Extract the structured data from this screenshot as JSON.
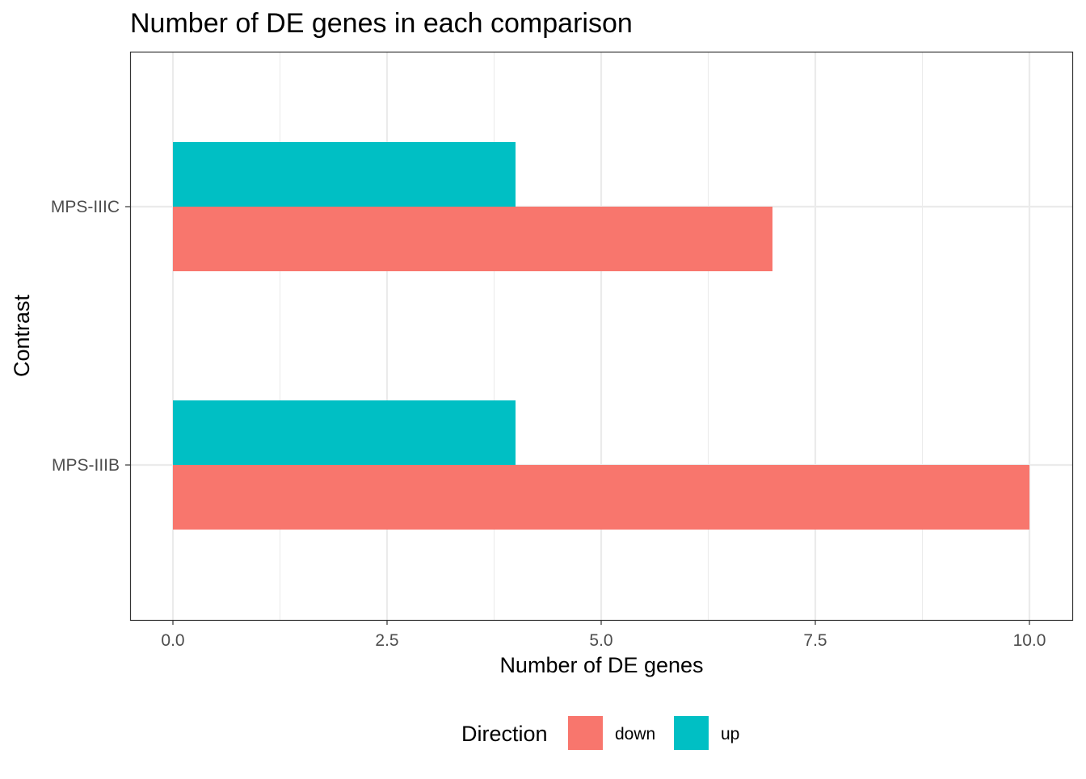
{
  "chart_data": {
    "type": "bar",
    "orientation": "horizontal",
    "title": "Number of DE genes in each comparison",
    "xlabel": "Number of DE genes",
    "ylabel": "Contrast",
    "categories": [
      "MPS-IIIB",
      "MPS-IIIC"
    ],
    "series": [
      {
        "name": "down",
        "values": [
          10,
          7
        ],
        "color": "#F8766D"
      },
      {
        "name": "up",
        "values": [
          4,
          4
        ],
        "color": "#00BFC4"
      }
    ],
    "xlim": [
      -0.5,
      10.5
    ],
    "x_ticks": [
      0,
      2.5,
      5,
      7.5,
      10
    ],
    "x_tick_labels": [
      "0.0",
      "2.5",
      "5.0",
      "7.5",
      "10.0"
    ],
    "x_minor_ticks": [
      1.25,
      3.75,
      6.25,
      8.75
    ],
    "grid": true,
    "legend": {
      "title": "Direction",
      "position": "bottom",
      "items": [
        "down",
        "up"
      ]
    },
    "theme": "bw"
  }
}
